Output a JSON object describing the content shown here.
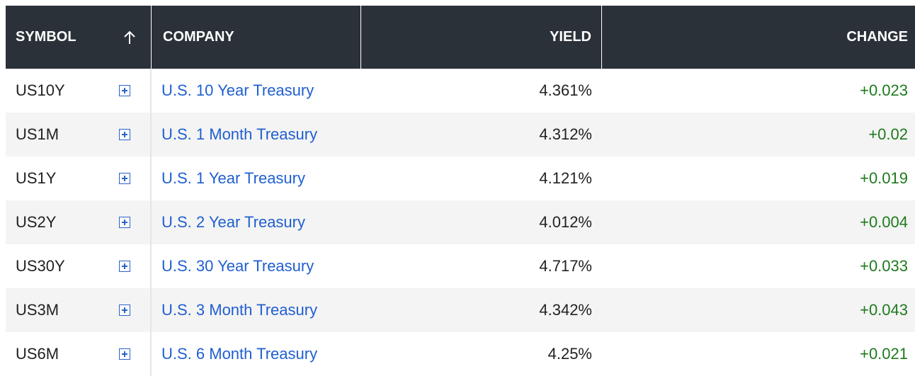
{
  "table": {
    "headers": {
      "symbol": "SYMBOL",
      "company": "COMPANY",
      "yield": "YIELD",
      "change": "CHANGE"
    },
    "sort_icon": "arrow-up-icon",
    "rows": [
      {
        "symbol": "US10Y",
        "company": "U.S. 10 Year Treasury",
        "yield": "4.361%",
        "change": "+0.023"
      },
      {
        "symbol": "US1M",
        "company": "U.S. 1 Month Treasury",
        "yield": "4.312%",
        "change": "+0.02"
      },
      {
        "symbol": "US1Y",
        "company": "U.S. 1 Year Treasury",
        "yield": "4.121%",
        "change": "+0.019"
      },
      {
        "symbol": "US2Y",
        "company": "U.S. 2 Year Treasury",
        "yield": "4.012%",
        "change": "+0.004"
      },
      {
        "symbol": "US30Y",
        "company": "U.S. 30 Year Treasury",
        "yield": "4.717%",
        "change": "+0.033"
      },
      {
        "symbol": "US3M",
        "company": "U.S. 3 Month Treasury",
        "yield": "4.342%",
        "change": "+0.043"
      },
      {
        "symbol": "US6M",
        "company": "U.S. 6 Month Treasury",
        "yield": "4.25%",
        "change": "+0.021"
      }
    ]
  },
  "colors": {
    "header_bg": "#2b3139",
    "link": "#1f5fd1",
    "positive": "#1d7a1d",
    "row_alt_bg": "#f4f4f4"
  }
}
